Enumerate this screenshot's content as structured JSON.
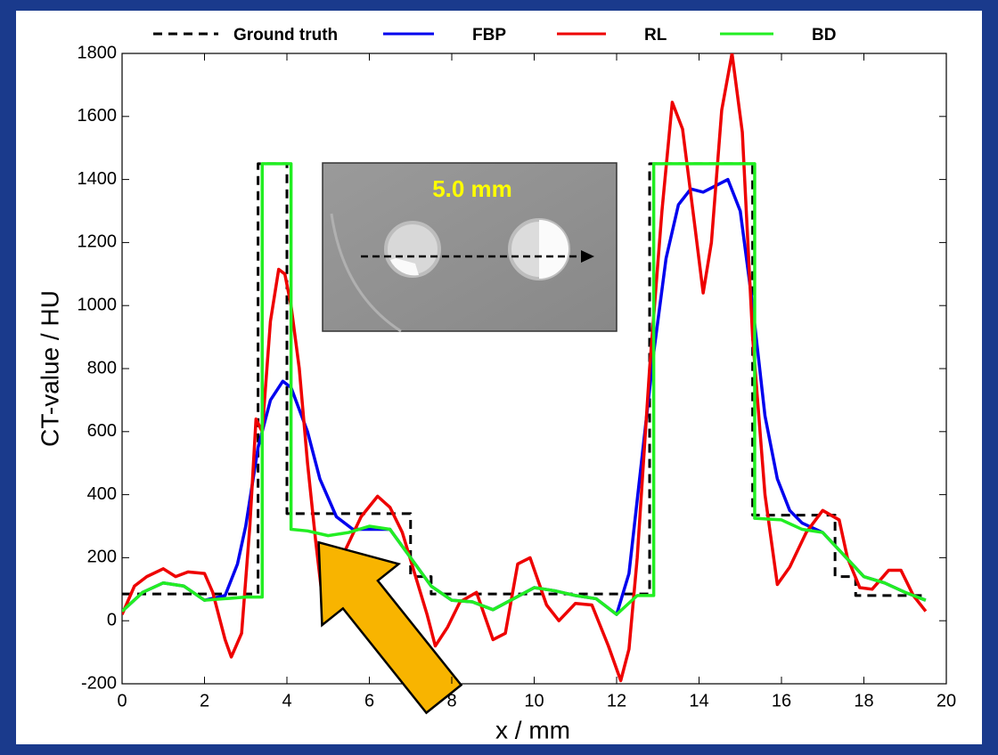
{
  "chart_data": {
    "type": "line",
    "xlabel": "x / mm",
    "ylabel": "CT-value / HU",
    "inset_label": "5.0 mm",
    "xlim": [
      0,
      20
    ],
    "xticks": [
      0,
      2,
      4,
      6,
      8,
      10,
      12,
      14,
      16,
      18,
      20
    ],
    "ylim": [
      -200,
      1800
    ],
    "yticks": [
      -200,
      0,
      200,
      400,
      600,
      800,
      1000,
      1200,
      1400,
      1600,
      1800
    ],
    "grid": false,
    "legend": "top",
    "series": [
      {
        "name": "Ground truth",
        "color": "#000000",
        "style": "dashed",
        "x": [
          0,
          3.3,
          3.3,
          4.0,
          4.0,
          7.0,
          7.0,
          7.5,
          7.5,
          12.8,
          12.8,
          15.3,
          15.3,
          17.3,
          17.3,
          17.8,
          17.8,
          19.5
        ],
        "values": [
          85,
          85,
          1450,
          1450,
          340,
          340,
          140,
          140,
          85,
          85,
          1450,
          1450,
          335,
          335,
          140,
          140,
          80,
          80
        ]
      },
      {
        "name": "FBP",
        "color": "#0000ee",
        "style": "solid",
        "x": [
          0,
          0.5,
          1,
          1.5,
          2,
          2.5,
          2.8,
          3.0,
          3.3,
          3.6,
          3.9,
          4.1,
          4.5,
          4.8,
          5.2,
          5.6,
          6,
          6.5,
          7,
          7.5,
          8,
          8.5,
          9,
          9.5,
          10,
          10.5,
          11,
          11.5,
          12,
          12.3,
          12.6,
          12.9,
          13.2,
          13.5,
          13.8,
          14.1,
          14.4,
          14.7,
          15,
          15.3,
          15.6,
          15.9,
          16.2,
          16.5,
          17,
          17.5,
          18,
          18.5,
          19,
          19.5
        ],
        "values": [
          30,
          90,
          120,
          110,
          65,
          80,
          180,
          300,
          550,
          700,
          760,
          740,
          600,
          450,
          330,
          290,
          290,
          290,
          200,
          110,
          65,
          60,
          35,
          70,
          105,
          95,
          80,
          70,
          20,
          150,
          500,
          850,
          1150,
          1320,
          1370,
          1360,
          1380,
          1400,
          1300,
          1000,
          650,
          450,
          350,
          310,
          280,
          210,
          140,
          120,
          90,
          65
        ]
      },
      {
        "name": "RL",
        "color": "#ee0000",
        "style": "solid",
        "x": [
          0,
          0.3,
          0.6,
          1.0,
          1.3,
          1.6,
          2.0,
          2.2,
          2.5,
          2.65,
          2.9,
          3.1,
          3.25,
          3.4,
          3.6,
          3.8,
          3.95,
          4.1,
          4.3,
          4.5,
          4.7,
          4.9,
          5.1,
          5.4,
          5.8,
          6.2,
          6.5,
          6.8,
          7.1,
          7.4,
          7.6,
          7.9,
          8.2,
          8.6,
          9.0,
          9.3,
          9.6,
          9.9,
          10.3,
          10.6,
          11.0,
          11.4,
          11.8,
          12.1,
          12.3,
          12.5,
          12.8,
          13.1,
          13.35,
          13.6,
          13.9,
          14.1,
          14.3,
          14.55,
          14.8,
          15.05,
          15.3,
          15.6,
          15.9,
          16.2,
          16.6,
          17.0,
          17.4,
          17.6,
          17.9,
          18.2,
          18.6,
          18.9,
          19.2,
          19.5
        ],
        "values": [
          20,
          110,
          140,
          165,
          140,
          155,
          150,
          90,
          -60,
          -115,
          -40,
          300,
          640,
          600,
          950,
          1115,
          1100,
          1000,
          800,
          500,
          250,
          25,
          30,
          220,
          330,
          395,
          360,
          280,
          150,
          20,
          -80,
          -20,
          60,
          90,
          -60,
          -40,
          180,
          200,
          50,
          0,
          55,
          50,
          -80,
          -190,
          -90,
          200,
          800,
          1300,
          1645,
          1560,
          1250,
          1040,
          1200,
          1620,
          1800,
          1550,
          900,
          400,
          115,
          170,
          280,
          350,
          320,
          200,
          105,
          100,
          160,
          160,
          80,
          30
        ]
      },
      {
        "name": "BD",
        "color": "#22ee22",
        "style": "solid",
        "x": [
          0,
          0.5,
          1,
          1.5,
          2,
          2.5,
          3,
          3.4,
          3.4,
          4.1,
          4.1,
          4.5,
          5,
          5.5,
          6,
          6.5,
          7,
          7.5,
          8,
          8.5,
          9,
          9.5,
          10,
          10.5,
          11,
          11.5,
          12,
          12.5,
          12.9,
          12.9,
          15.35,
          15.35,
          16,
          16.5,
          17,
          17.5,
          18,
          18.5,
          19,
          19.5
        ],
        "values": [
          30,
          90,
          120,
          110,
          65,
          70,
          75,
          75,
          1450,
          1450,
          290,
          285,
          270,
          280,
          300,
          290,
          200,
          110,
          65,
          60,
          35,
          70,
          105,
          95,
          80,
          70,
          20,
          80,
          80,
          1450,
          1450,
          325,
          320,
          290,
          280,
          210,
          140,
          120,
          90,
          65
        ]
      }
    ]
  }
}
